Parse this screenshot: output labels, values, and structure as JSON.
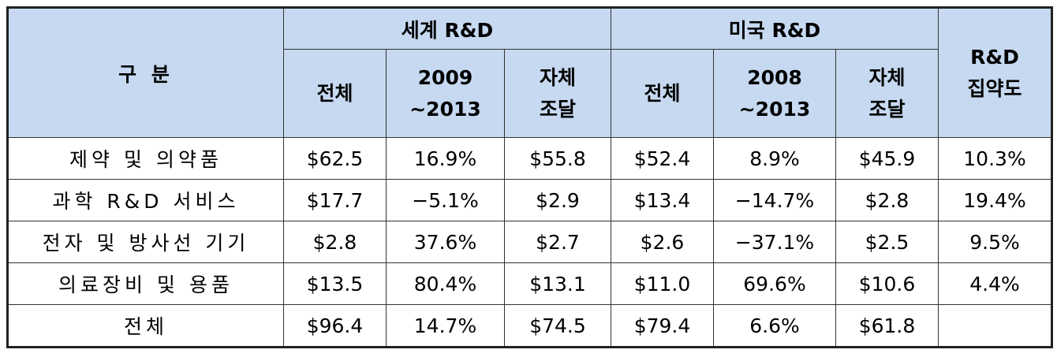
{
  "table": {
    "header": {
      "category": "구 분",
      "world": "세계 R&D",
      "us": "미국 R&D",
      "intensity": [
        "R&D",
        "집약도"
      ],
      "sub": [
        [
          "전체"
        ],
        [
          "2009",
          "~2013"
        ],
        [
          "자체",
          "조달"
        ],
        [
          "전체"
        ],
        [
          "2008",
          "~2013"
        ],
        [
          "자체",
          "조달"
        ]
      ]
    },
    "rows": [
      [
        "제약 및 의약품",
        "$62.5",
        "16.9%",
        "$55.8",
        "$52.4",
        "8.9%",
        "$45.9",
        "10.3%"
      ],
      [
        "과학 R&D 서비스",
        "$17.7",
        "−5.1%",
        "$2.9",
        "$13.4",
        "−14.7%",
        "$2.8",
        "19.4%"
      ],
      [
        "전자 및 방사선 기기",
        "$2.8",
        "37.6%",
        "$2.7",
        "$2.6",
        "−37.1%",
        "$2.5",
        "9.5%"
      ],
      [
        "의료장비 및 용품",
        "$13.5",
        "80.4%",
        "$13.1",
        "$11.0",
        "69.6%",
        "$10.6",
        "4.4%"
      ],
      [
        "전체",
        "$96.4",
        "14.7%",
        "$74.5",
        "$79.4",
        "6.6%",
        "$61.8"
      ]
    ]
  }
}
